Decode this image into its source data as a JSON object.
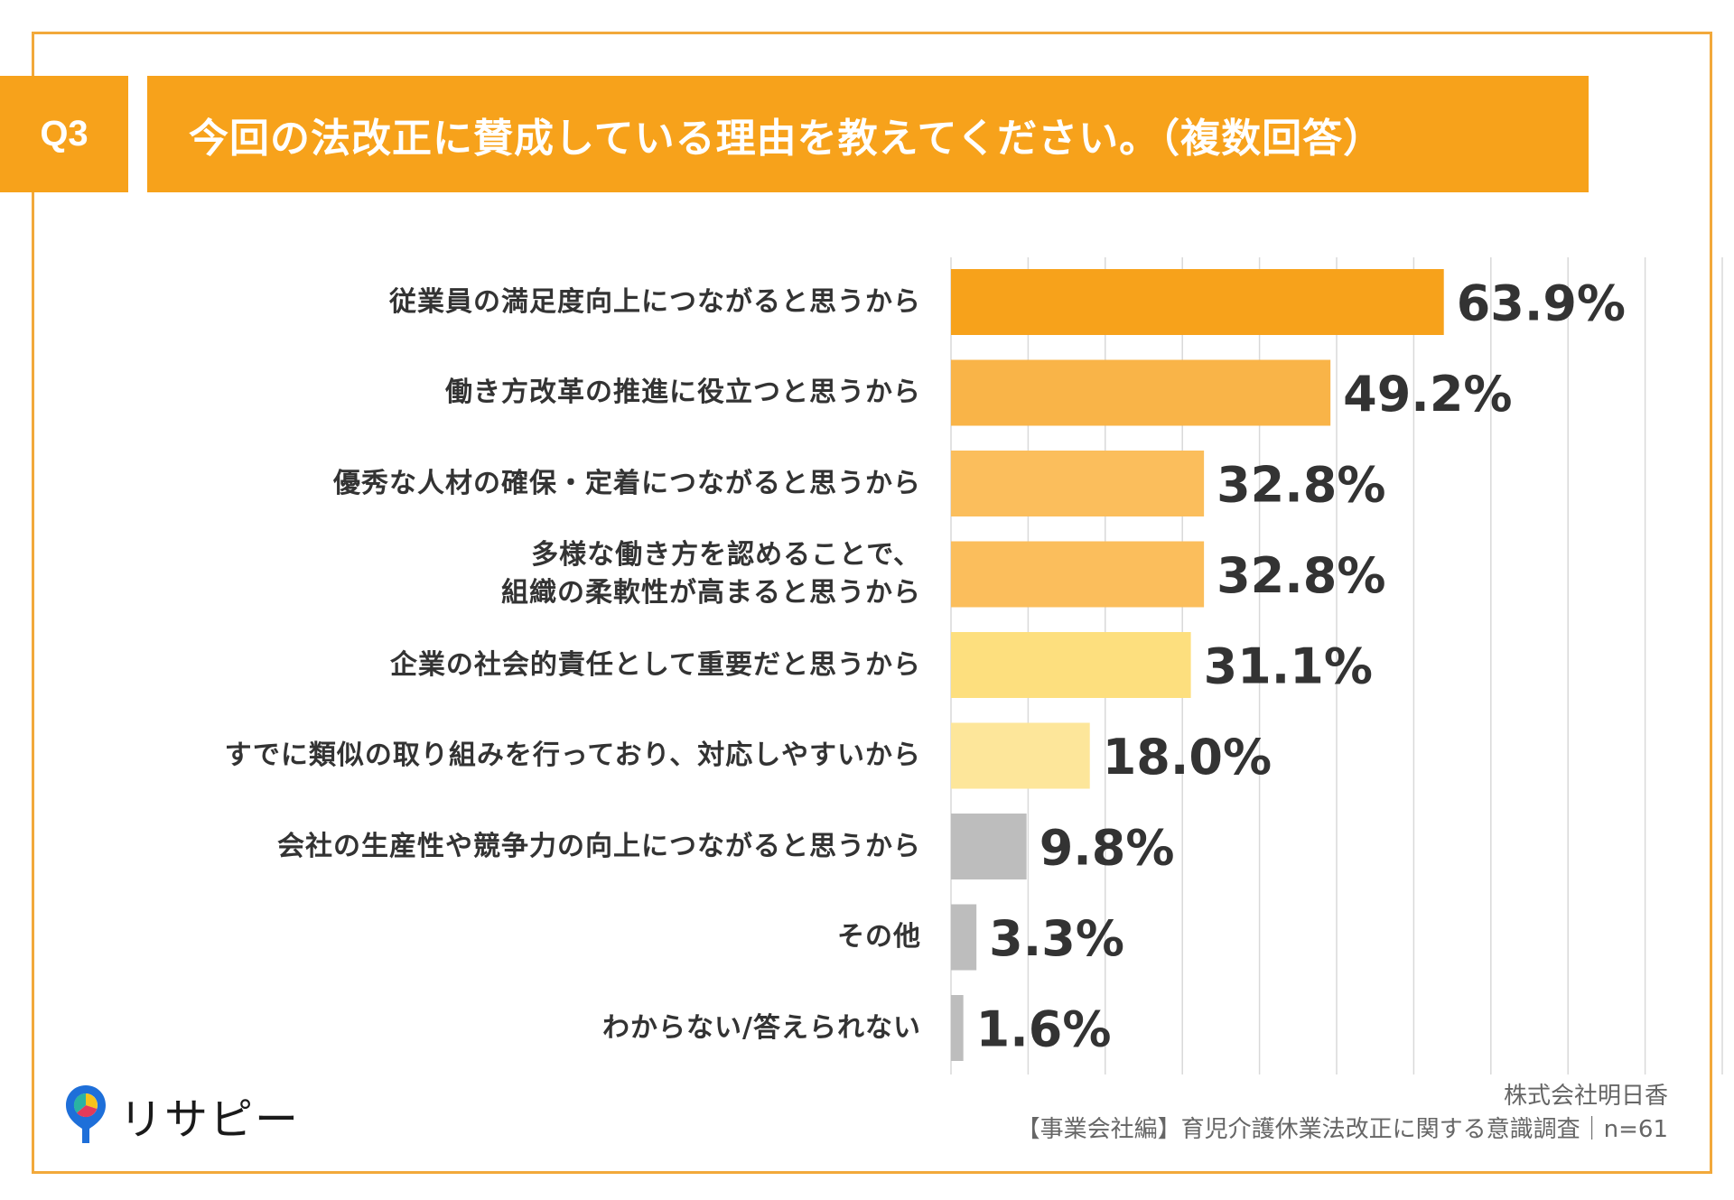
{
  "question": {
    "number": "Q3",
    "title": "今回の法改正に賛成している理由を教えてください。（複数回答）"
  },
  "chart_data": {
    "type": "bar",
    "orientation": "horizontal",
    "categories": [
      "従業員の満足度向上につながると思うから",
      "働き方改革の推進に役立つと思うから",
      "優秀な人材の確保・定着につながると思うから",
      "多様な働き方を認めることで、\n組織の柔軟性が高まると思うから",
      "企業の社会的責任として重要だと思うから",
      "すでに類似の取り組みを行っており、対応しやすいから",
      "会社の生産性や競争力の向上につながると思うから",
      "その他",
      "わからない/答えられない"
    ],
    "values": [
      63.9,
      49.2,
      32.8,
      32.8,
      31.1,
      18.0,
      9.8,
      3.3,
      1.6
    ],
    "value_labels": [
      "63.9%",
      "49.2%",
      "32.8%",
      "32.8%",
      "31.1%",
      "18.0%",
      "9.8%",
      "3.3%",
      "1.6%"
    ],
    "bar_colors": [
      "#f7a21b",
      "#f9b448",
      "#fbbe5c",
      "#fbbe5c",
      "#fddf7e",
      "#fde69a",
      "#bdbdbd",
      "#bdbdbd",
      "#bdbdbd"
    ],
    "xlim": [
      0,
      100
    ],
    "grid": true,
    "title": "",
    "xlabel": "",
    "ylabel": ""
  },
  "source": {
    "company": "株式会社明日香",
    "survey": "【事業会社編】育児介護休業法改正に関する意識調査｜n=61"
  },
  "logo": {
    "text": "リサピー",
    "icon": "map-pin-icon"
  },
  "colors": {
    "accent": "#f7a21b",
    "frame": "#f2a93b"
  }
}
